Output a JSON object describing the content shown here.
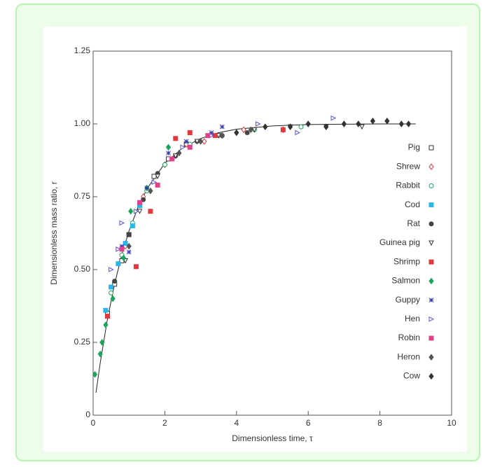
{
  "chart_data": {
    "type": "scatter",
    "xlabel": "Dimensionless time, τ",
    "ylabel": "Dimensionless mass ratio, r",
    "xlim": [
      0,
      10
    ],
    "xticks": [
      0,
      2,
      4,
      6,
      8,
      10
    ],
    "ylim": [
      0,
      1.25
    ],
    "yticks": [
      0,
      0.25,
      {
        "value": 0.5,
        "label": "0.50"
      },
      0.75,
      {
        "value": 1,
        "label": "1.00"
      },
      1.25
    ],
    "legend": "right",
    "curve": {
      "color": "#222222",
      "x": [
        0.08,
        0.2,
        0.4,
        0.6,
        0.8,
        1,
        1.25,
        1.5,
        2,
        2.5,
        3,
        3.5,
        4,
        5,
        6,
        7,
        8,
        9
      ],
      "values": [
        0.077,
        0.181,
        0.33,
        0.451,
        0.551,
        0.632,
        0.713,
        0.777,
        0.865,
        0.918,
        0.95,
        0.97,
        0.982,
        0.993,
        0.998,
        0.999,
        1.0,
        1.0
      ]
    },
    "series": [
      {
        "name": "Pig",
        "color": "#333333",
        "marker": "open-square",
        "x": [
          0.4,
          0.6,
          0.8,
          1.0,
          1.3,
          1.7,
          2.1,
          2.6
        ],
        "values": [
          0.35,
          0.45,
          0.53,
          0.62,
          0.72,
          0.82,
          0.88,
          0.93
        ]
      },
      {
        "name": "Shrew",
        "color": "#e0393e",
        "marker": "open-diamond",
        "x": [
          0.9,
          1.4,
          2.0,
          2.6,
          3.1,
          4.2,
          5.3
        ],
        "values": [
          0.58,
          0.75,
          0.86,
          0.93,
          0.94,
          0.98,
          0.98
        ]
      },
      {
        "name": "Rabbit",
        "color": "#1aa55a",
        "marker": "open-circle",
        "x": [
          0.5,
          0.8,
          1.1,
          1.5,
          2.0,
          2.7,
          3.5,
          4.5,
          5.8
        ],
        "values": [
          0.42,
          0.55,
          0.66,
          0.77,
          0.86,
          0.93,
          0.96,
          0.98,
          0.99
        ]
      },
      {
        "name": "Cod",
        "color": "#29b6e8",
        "marker": "square",
        "x": [
          0.35,
          0.5,
          0.7,
          0.9,
          1.1,
          1.3
        ],
        "values": [
          0.36,
          0.44,
          0.52,
          0.59,
          0.65,
          0.72
        ]
      },
      {
        "name": "Rat",
        "color": "#444444",
        "marker": "circle",
        "x": [
          0.6,
          1.0,
          1.4,
          1.8,
          2.3,
          2.9,
          3.6,
          4.3
        ],
        "values": [
          0.46,
          0.62,
          0.74,
          0.83,
          0.89,
          0.94,
          0.96,
          0.97
        ]
      },
      {
        "name": "Guinea pig",
        "color": "#333333",
        "marker": "open-triangle-down",
        "x": [
          0.9,
          1.3,
          1.8,
          2.3,
          2.9,
          3.5,
          4.5,
          5.5,
          6.5,
          7.5
        ],
        "values": [
          0.53,
          0.7,
          0.82,
          0.89,
          0.94,
          0.96,
          0.98,
          0.99,
          0.99,
          0.99
        ]
      },
      {
        "name": "Shrimp",
        "color": "#e0393e",
        "marker": "square",
        "x": [
          0.4,
          1.2,
          1.6,
          2.3,
          2.7,
          3.4,
          5.3
        ],
        "values": [
          0.34,
          0.51,
          0.7,
          0.95,
          0.97,
          0.96,
          0.98
        ]
      },
      {
        "name": "Salmon",
        "color": "#1aa55a",
        "marker": "diamond",
        "x": [
          0.05,
          0.2,
          0.25,
          0.35,
          0.55,
          0.85,
          1.05,
          1.5,
          2.1
        ],
        "values": [
          0.14,
          0.21,
          0.25,
          0.31,
          0.4,
          0.54,
          0.7,
          0.78,
          0.92
        ]
      },
      {
        "name": "Guppy",
        "color": "#3a3ab0",
        "marker": "asterisk",
        "x": [
          0.8,
          1.0,
          1.5,
          2.1,
          2.6,
          3.3,
          3.6
        ],
        "values": [
          0.58,
          0.56,
          0.78,
          0.9,
          0.94,
          0.97,
          0.99
        ]
      },
      {
        "name": "Hen",
        "color": "#5555dd",
        "marker": "open-triangle-right",
        "x": [
          0.5,
          0.7,
          0.8,
          1.2,
          1.7,
          2.5,
          3.3,
          4.6,
          5.7,
          6.7
        ],
        "values": [
          0.5,
          0.57,
          0.66,
          0.7,
          0.8,
          0.92,
          0.96,
          1.0,
          0.97,
          1.02
        ]
      },
      {
        "name": "Robin",
        "color": "#e0408a",
        "marker": "square",
        "x": [
          0.8,
          1.3,
          1.8,
          2.2,
          2.7,
          3.2
        ],
        "values": [
          0.57,
          0.73,
          0.79,
          0.88,
          0.92,
          0.96
        ]
      },
      {
        "name": "Heron",
        "color": "#555555",
        "marker": "diamond",
        "x": [
          1.0,
          1.6,
          2.4,
          3.0,
          3.6,
          4.4
        ],
        "values": [
          0.58,
          0.77,
          0.9,
          0.94,
          0.96,
          0.98
        ]
      },
      {
        "name": "Cow",
        "color": "#333333",
        "marker": "diamond",
        "x": [
          4.0,
          4.8,
          5.5,
          6.0,
          6.5,
          7.0,
          7.4,
          7.8,
          8.2,
          8.6,
          8.8
        ],
        "values": [
          0.97,
          0.99,
          0.99,
          1.0,
          0.99,
          1.0,
          1.0,
          1.01,
          1.01,
          1.0,
          1.0
        ]
      }
    ]
  }
}
